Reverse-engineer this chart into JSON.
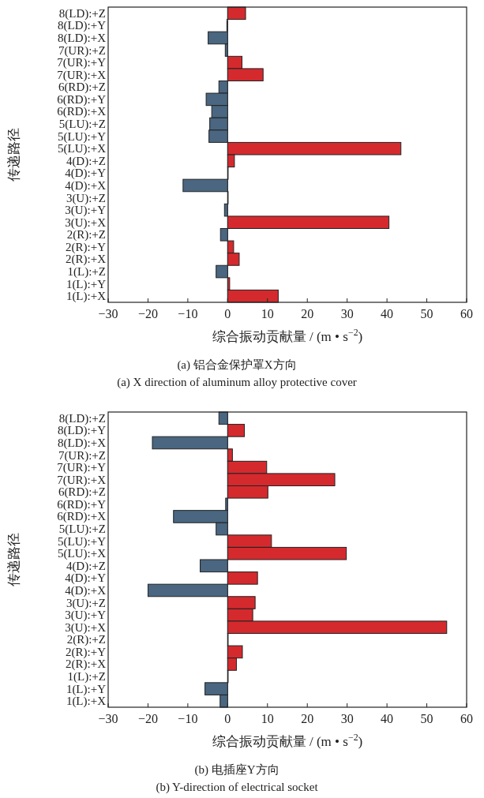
{
  "chart_data": [
    {
      "type": "bar",
      "orientation": "horizontal",
      "title": "(a)  铝合金保护罩X方向",
      "subtitle": "(a)  X direction of aluminum alloy protective cover",
      "xlabel": "综合振动贡献量 / (m • s$^{−2}$)",
      "ylabel": "传递路径",
      "categories": [
        "8(LD):+Z",
        "8(LD):+Y",
        "8(LD):+X",
        "7(UR):+Z",
        "7(UR):+Y",
        "7(UR):+X",
        "6(RD):+Z",
        "6(RD):+Y",
        "6(RD):+X",
        "5(LU):+Z",
        "5(LU):+Y",
        "5(LU):+X",
        "4(D):+Z",
        "4(D):+Y",
        "4(D):+X",
        "3(U):+Z",
        "3(U):+Y",
        "3(U):+X",
        "2(R):+Z",
        "2(R):+Y",
        "2(R):+X",
        "1(L):+Z",
        "1(L):+Y",
        "1(L):+X"
      ],
      "values": [
        4.5,
        -0.2,
        -4.9,
        -0.6,
        3.6,
        8.9,
        -2.2,
        -5.4,
        -4.0,
        -4.5,
        -4.7,
        43.5,
        1.7,
        0,
        -11.2,
        0,
        -0.8,
        40.5,
        -1.8,
        1.5,
        2.9,
        -2.9,
        0.5,
        12.7
      ],
      "colors": [
        "#d42a2e",
        "#4a6680",
        "#4a6680",
        "#4a6680",
        "#d42a2e",
        "#d42a2e",
        "#4a6680",
        "#4a6680",
        "#4a6680",
        "#4a6680",
        "#4a6680",
        "#d42a2e",
        "#d42a2e",
        "#4a6680",
        "#4a6680",
        "#4a6680",
        "#4a6680",
        "#d42a2e",
        "#4a6680",
        "#d42a2e",
        "#d42a2e",
        "#4a6680",
        "#d42a2e",
        "#d42a2e"
      ],
      "xlim": [
        -30,
        60
      ],
      "xticks": [
        {
          "value": -30,
          "label": "−30"
        },
        {
          "value": -20,
          "label": "−20"
        },
        {
          "value": -10,
          "label": "−10"
        },
        0,
        10,
        20,
        30,
        40,
        50,
        60
      ]
    },
    {
      "type": "bar",
      "orientation": "horizontal",
      "title": "(b)  电插座Y方向",
      "subtitle": "(b)  Y-direction of electrical socket",
      "xlabel": "综合振动贡献量 / (m • s$^{−2}$)",
      "ylabel": "传递路径",
      "categories": [
        "8(LD):+Z",
        "8(LD):+Y",
        "8(LD):+X",
        "7(UR):+Z",
        "7(UR):+Y",
        "7(UR):+X",
        "6(RD):+Z",
        "6(RD):+Y",
        "6(RD):+X",
        "5(LU):+Z",
        "5(LU):+Y",
        "5(LU):+X",
        "4(D):+Z",
        "4(D):+Y",
        "4(D):+X",
        "3(U):+Z",
        "3(U):+Y",
        "3(U):+X",
        "2(R):+Z",
        "2(R):+Y",
        "2(R):+X",
        "1(L):+Z",
        "1(L):+Y",
        "1(L):+X"
      ],
      "values": [
        -2.2,
        4.2,
        -18.9,
        1.2,
        9.8,
        26.9,
        10.1,
        -0.5,
        -13.6,
        -2.9,
        11.0,
        29.8,
        -6.9,
        7.5,
        -20.0,
        6.9,
        6.3,
        55.0,
        0,
        3.7,
        2.2,
        0,
        -5.7,
        -1.9
      ],
      "colors": [
        "#4a6680",
        "#d42a2e",
        "#4a6680",
        "#d42a2e",
        "#d42a2e",
        "#d42a2e",
        "#d42a2e",
        "#4a6680",
        "#4a6680",
        "#4a6680",
        "#d42a2e",
        "#d42a2e",
        "#4a6680",
        "#d42a2e",
        "#4a6680",
        "#d42a2e",
        "#d42a2e",
        "#d42a2e",
        "#4a6680",
        "#d42a2e",
        "#d42a2e",
        "#4a6680",
        "#4a6680",
        "#4a6680"
      ],
      "xlim": [
        -30,
        60
      ],
      "xticks": [
        {
          "value": -30,
          "label": "−30"
        },
        {
          "value": -20,
          "label": "−20"
        },
        {
          "value": -10,
          "label": "−10"
        },
        0,
        10,
        20,
        30,
        40,
        50,
        60
      ]
    }
  ]
}
